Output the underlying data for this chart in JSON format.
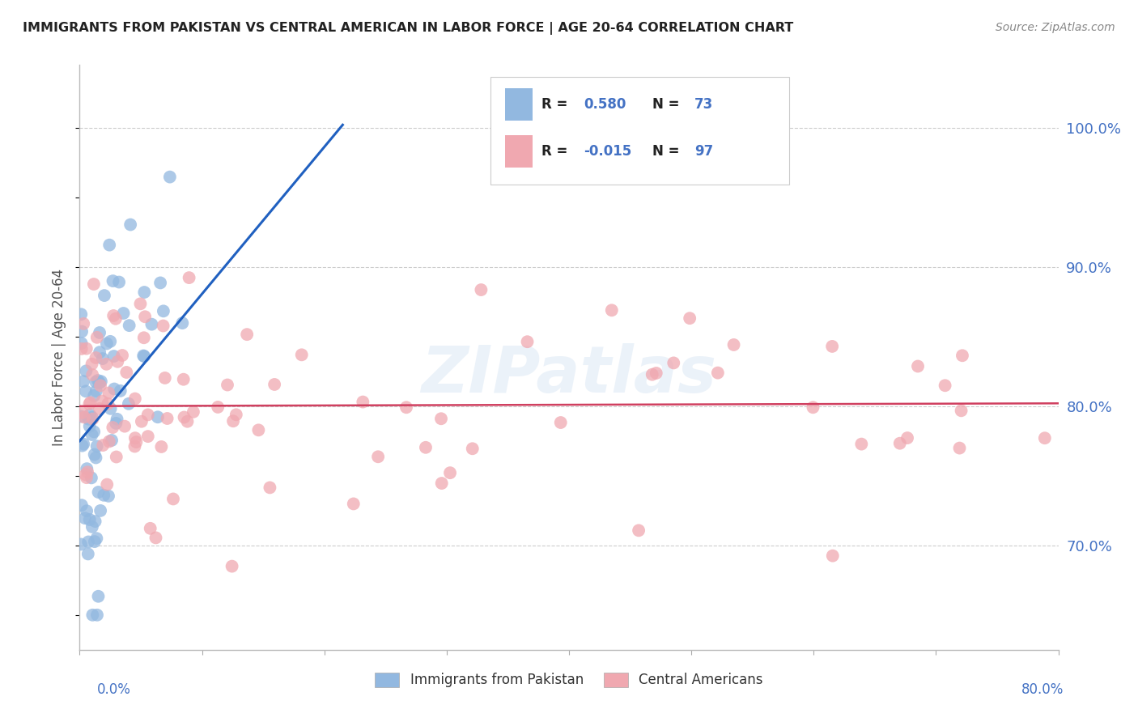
{
  "title": "IMMIGRANTS FROM PAKISTAN VS CENTRAL AMERICAN IN LABOR FORCE | AGE 20-64 CORRELATION CHART",
  "source": "Source: ZipAtlas.com",
  "ylabel": "In Labor Force | Age 20-64",
  "yticks_labels": [
    "70.0%",
    "80.0%",
    "90.0%",
    "100.0%"
  ],
  "ytick_vals": [
    0.7,
    0.8,
    0.9,
    1.0
  ],
  "xmin": 0.0,
  "xmax": 0.8,
  "ymin": 0.625,
  "ymax": 1.045,
  "blue_color": "#92b8e0",
  "pink_color": "#f0a8b0",
  "blue_line_color": "#2060c0",
  "pink_line_color": "#d04060",
  "watermark": "ZIPatlas",
  "background_color": "#ffffff",
  "grid_color": "#cccccc",
  "axis_color": "#4472c4",
  "title_color": "#333333",
  "legend_r_color": "#4472c4",
  "legend_n_color": "#4472c4"
}
